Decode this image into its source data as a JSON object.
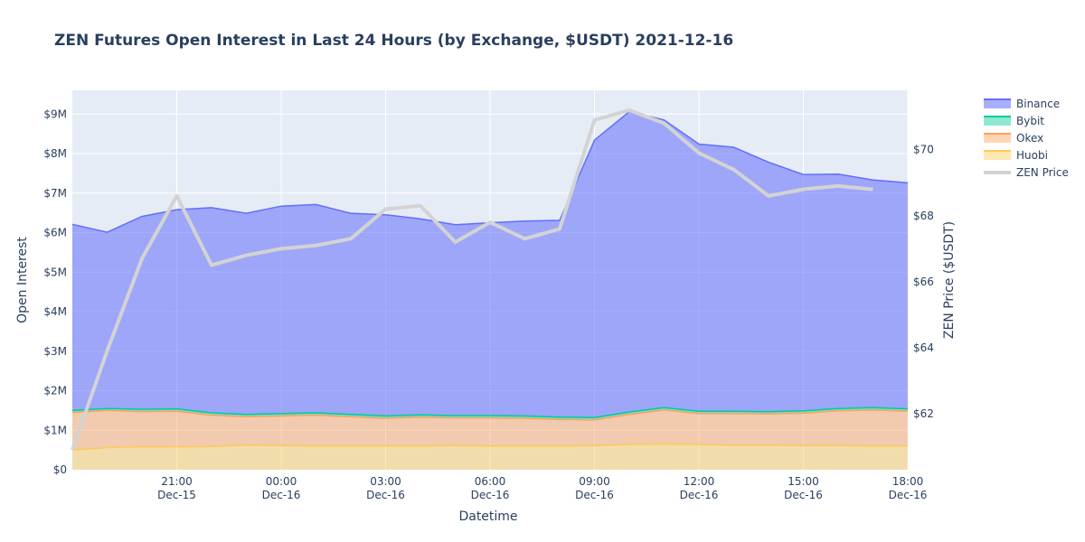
{
  "chart_data": {
    "type": "area",
    "title": "ZEN Futures Open Interest in Last 24 Hours (by Exchange, $USDT) 2021-12-16",
    "xlabel": "Datetime",
    "ylabel": "Open Interest",
    "y2label": "ZEN Price ($USDT)",
    "stacked": true,
    "grid": true,
    "legend_position": "right",
    "x": [
      "2021-12-15 18:00",
      "2021-12-15 19:00",
      "2021-12-15 20:00",
      "2021-12-15 21:00",
      "2021-12-15 22:00",
      "2021-12-15 23:00",
      "2021-12-16 00:00",
      "2021-12-16 01:00",
      "2021-12-16 02:00",
      "2021-12-16 03:00",
      "2021-12-16 04:00",
      "2021-12-16 05:00",
      "2021-12-16 06:00",
      "2021-12-16 07:00",
      "2021-12-16 08:00",
      "2021-12-16 09:00",
      "2021-12-16 10:00",
      "2021-12-16 11:00",
      "2021-12-16 12:00",
      "2021-12-16 13:00",
      "2021-12-16 14:00",
      "2021-12-16 15:00",
      "2021-12-16 16:00",
      "2021-12-16 17:00",
      "2021-12-16 18:00"
    ],
    "x_ticks": [
      {
        "at": "2021-12-15 21:00",
        "line1": "21:00",
        "line2": "Dec-15"
      },
      {
        "at": "2021-12-16 00:00",
        "line1": "00:00",
        "line2": "Dec-16"
      },
      {
        "at": "2021-12-16 03:00",
        "line1": "03:00",
        "line2": "Dec-16"
      },
      {
        "at": "2021-12-16 06:00",
        "line1": "06:00",
        "line2": "Dec-16"
      },
      {
        "at": "2021-12-16 09:00",
        "line1": "09:00",
        "line2": "Dec-16"
      },
      {
        "at": "2021-12-16 12:00",
        "line1": "12:00",
        "line2": "Dec-16"
      },
      {
        "at": "2021-12-16 15:00",
        "line1": "15:00",
        "line2": "Dec-16"
      },
      {
        "at": "2021-12-16 18:00",
        "line1": "18:00",
        "line2": "Dec-16"
      }
    ],
    "ylim": [
      0,
      9600000
    ],
    "y_ticks": [
      {
        "value": 0,
        "label": "$0"
      },
      {
        "value": 1000000,
        "label": "$1M"
      },
      {
        "value": 2000000,
        "label": "$2M"
      },
      {
        "value": 3000000,
        "label": "$3M"
      },
      {
        "value": 4000000,
        "label": "$4M"
      },
      {
        "value": 5000000,
        "label": "$5M"
      },
      {
        "value": 6000000,
        "label": "$6M"
      },
      {
        "value": 7000000,
        "label": "$7M"
      },
      {
        "value": 8000000,
        "label": "$8M"
      },
      {
        "value": 9000000,
        "label": "$9M"
      }
    ],
    "y2lim": [
      60.3,
      71.8
    ],
    "y2_ticks": [
      {
        "value": 62,
        "label": "$62"
      },
      {
        "value": 64,
        "label": "$64"
      },
      {
        "value": 66,
        "label": "$66"
      },
      {
        "value": 68,
        "label": "$68"
      },
      {
        "value": 70,
        "label": "$70"
      }
    ],
    "series": [
      {
        "name": "Huobi",
        "color": "#fecb52",
        "fill": "rgba(254,203,82,0.45)",
        "stacked": true,
        "values": [
          500000,
          560000,
          580000,
          580000,
          590000,
          620000,
          610000,
          600000,
          600000,
          600000,
          600000,
          610000,
          600000,
          600000,
          600000,
          610000,
          640000,
          650000,
          640000,
          620000,
          620000,
          610000,
          610000,
          600000,
          600000
        ]
      },
      {
        "name": "Okex",
        "color": "#ffa15a",
        "fill": "rgba(255,161,90,0.45)",
        "stacked": true,
        "values": [
          950000,
          940000,
          890000,
          900000,
          790000,
          720000,
          750000,
          780000,
          740000,
          700000,
          730000,
          700000,
          710000,
          700000,
          670000,
          650000,
          760000,
          860000,
          780000,
          800000,
          790000,
          820000,
          880000,
          910000,
          880000
        ]
      },
      {
        "name": "Bybit",
        "color": "#00cc96",
        "fill": "rgba(0,204,150,0.45)",
        "stacked": true,
        "values": [
          50000,
          50000,
          60000,
          60000,
          60000,
          60000,
          60000,
          60000,
          60000,
          60000,
          60000,
          60000,
          60000,
          60000,
          60000,
          60000,
          60000,
          60000,
          60000,
          60000,
          60000,
          60000,
          60000,
          60000,
          60000
        ]
      },
      {
        "name": "Binance",
        "color": "#636efa",
        "fill": "rgba(99,110,250,0.55)",
        "stacked": true,
        "values": [
          4710000,
          4460000,
          4880000,
          5040000,
          5190000,
          5090000,
          5250000,
          5270000,
          5090000,
          5090000,
          4960000,
          4830000,
          4880000,
          4930000,
          4980000,
          7020000,
          7600000,
          7280000,
          6760000,
          6680000,
          6310000,
          5980000,
          5930000,
          5760000,
          5720000
        ]
      },
      {
        "name": "ZEN Price",
        "color": "#d3d3d3",
        "axis": "y2",
        "stacked": false,
        "values": [
          60.9,
          63.9,
          66.7,
          68.6,
          66.5,
          66.8,
          67.0,
          67.1,
          67.3,
          68.2,
          68.3,
          67.2,
          67.8,
          67.3,
          67.6,
          70.9,
          71.2,
          70.8,
          69.9,
          69.4,
          68.6,
          68.8,
          68.9,
          68.8,
          null
        ]
      }
    ]
  }
}
